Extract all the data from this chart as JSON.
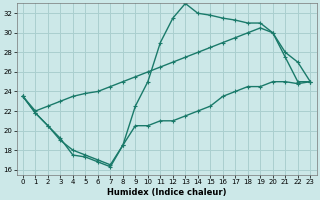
{
  "xlabel": "Humidex (Indice chaleur)",
  "bg_color": "#cce8e8",
  "grid_color": "#aacfcf",
  "line_color": "#1a7a6a",
  "xlim": [
    -0.5,
    23.5
  ],
  "ylim": [
    15.5,
    33.0
  ],
  "xticks": [
    0,
    1,
    2,
    3,
    4,
    5,
    6,
    7,
    8,
    9,
    10,
    11,
    12,
    13,
    14,
    15,
    16,
    17,
    18,
    19,
    20,
    21,
    22,
    23
  ],
  "yticks": [
    16,
    18,
    20,
    22,
    24,
    26,
    28,
    30,
    32
  ],
  "line1_x": [
    0,
    1,
    2,
    3,
    4,
    5,
    6,
    7,
    8,
    9,
    10,
    11,
    12,
    13,
    14,
    15,
    16,
    17,
    18,
    19,
    20,
    21,
    22,
    23
  ],
  "line1_y": [
    23.5,
    21.8,
    20.5,
    19.2,
    17.5,
    17.3,
    16.8,
    16.3,
    18.5,
    20.5,
    20.5,
    21.0,
    21.0,
    21.5,
    22.0,
    22.5,
    23.5,
    24.0,
    24.5,
    24.5,
    25.0,
    25.0,
    24.8,
    25.0
  ],
  "line2_x": [
    0,
    1,
    2,
    3,
    4,
    5,
    6,
    7,
    8,
    9,
    10,
    11,
    12,
    13,
    14,
    15,
    16,
    17,
    18,
    19,
    20,
    21,
    22,
    23
  ],
  "line2_y": [
    23.5,
    21.8,
    20.5,
    19.0,
    18.0,
    17.5,
    17.0,
    16.5,
    18.5,
    22.5,
    25.0,
    29.0,
    31.5,
    33.0,
    32.0,
    31.8,
    31.5,
    31.3,
    31.0,
    31.0,
    30.0,
    27.5,
    25.0,
    25.0
  ],
  "line3_x": [
    0,
    1,
    2,
    3,
    4,
    5,
    6,
    7,
    8,
    9,
    10,
    11,
    12,
    13,
    14,
    15,
    16,
    17,
    18,
    19,
    20,
    21,
    22,
    23
  ],
  "line3_y": [
    23.5,
    22.0,
    22.5,
    23.0,
    23.5,
    23.8,
    24.0,
    24.5,
    25.0,
    25.5,
    26.0,
    26.5,
    27.0,
    27.5,
    28.0,
    28.5,
    29.0,
    29.5,
    30.0,
    30.5,
    30.0,
    28.0,
    27.0,
    25.0
  ]
}
